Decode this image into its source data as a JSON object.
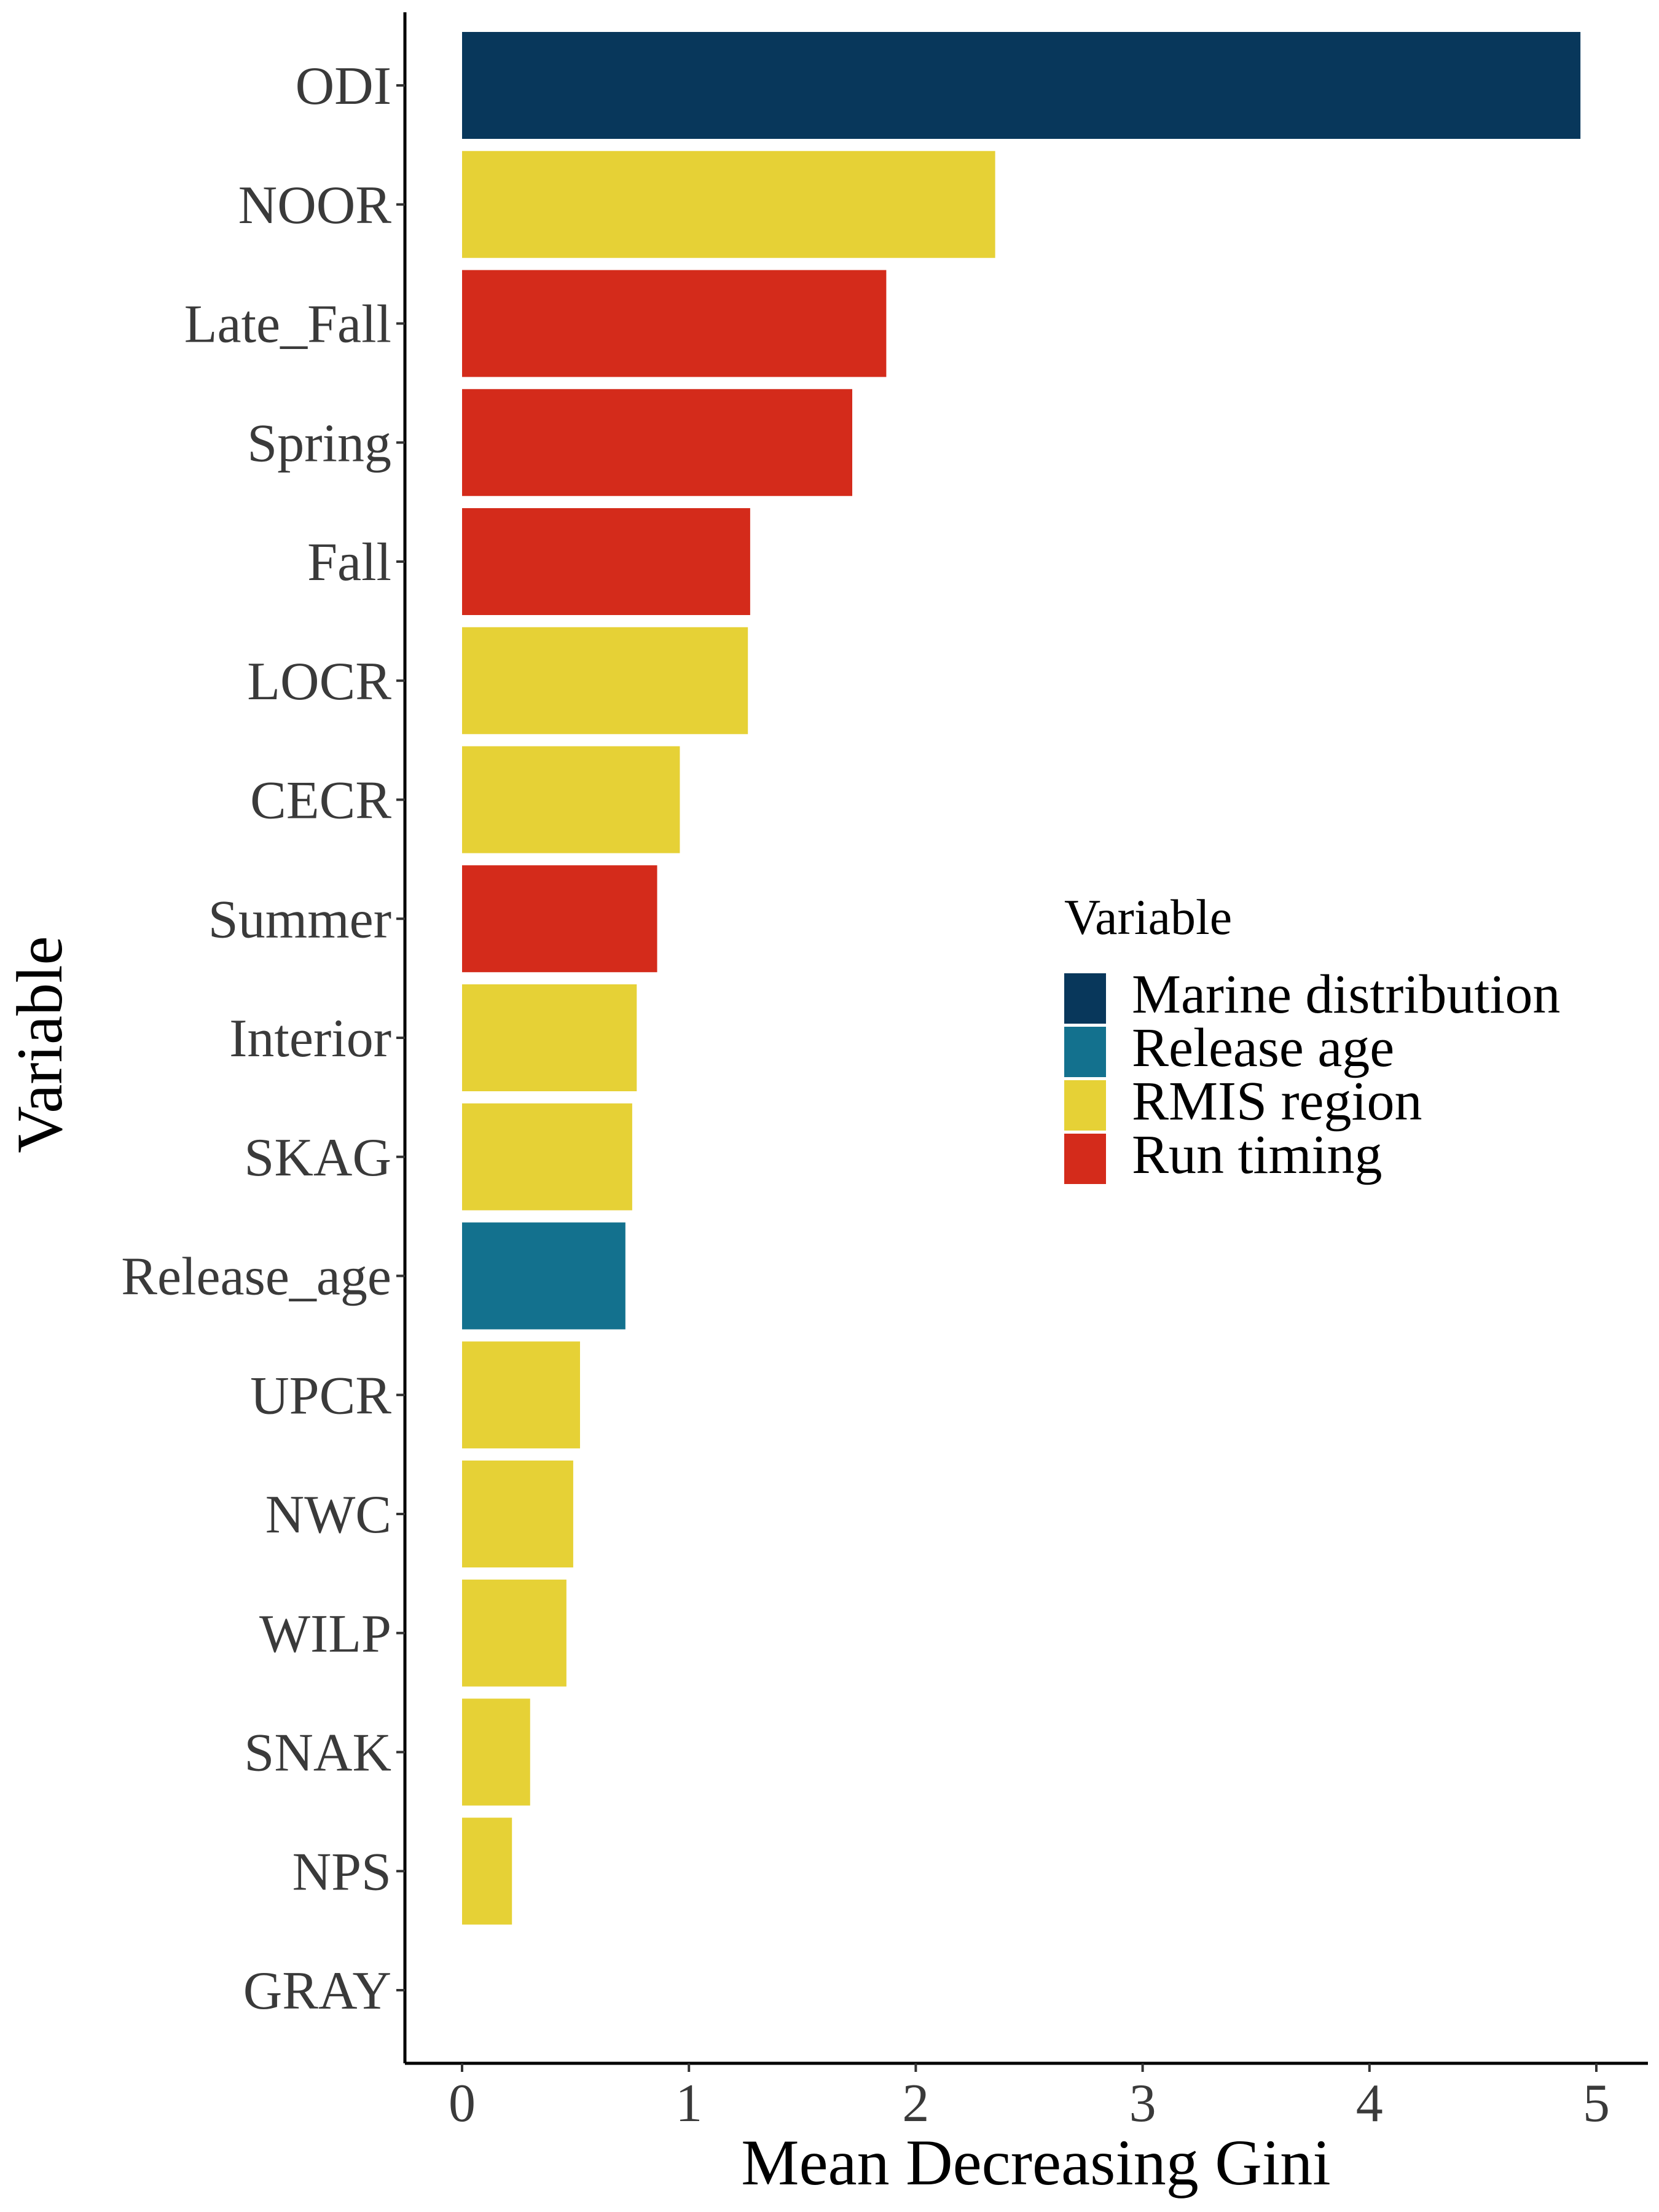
{
  "chart_data": {
    "type": "bar",
    "orientation": "horizontal",
    "title": "",
    "xlabel": "Mean Decreasing Gini",
    "ylabel": "Variable",
    "xlim": [
      -0.25,
      5.2
    ],
    "x_ticks": [
      0,
      1,
      2,
      3,
      4,
      5
    ],
    "grid": false,
    "categories": [
      "ODI",
      "NOOR",
      "Late_Fall",
      "Spring",
      "Fall",
      "LOCR",
      "CECR",
      "Summer",
      "Interior",
      "SKAG",
      "Release_age",
      "UPCR",
      "NWC",
      "WILP",
      "SNAK",
      "NPS",
      "GRAY"
    ],
    "values": [
      4.93,
      2.35,
      1.87,
      1.72,
      1.27,
      1.26,
      0.96,
      0.86,
      0.77,
      0.75,
      0.72,
      0.52,
      0.49,
      0.46,
      0.3,
      0.22,
      0.0
    ],
    "groups": [
      "Marine distribution",
      "RMIS region",
      "Run timing",
      "Run timing",
      "Run timing",
      "RMIS region",
      "RMIS region",
      "Run timing",
      "RMIS region",
      "RMIS region",
      "Release age",
      "RMIS region",
      "RMIS region",
      "RMIS region",
      "RMIS region",
      "RMIS region",
      "RMIS region"
    ],
    "legend": {
      "title": "Variable",
      "position": "right",
      "entries": [
        {
          "name": "Marine distribution",
          "color": "#08375b"
        },
        {
          "name": "Release age",
          "color": "#13718e"
        },
        {
          "name": "RMIS region",
          "color": "#e6d136"
        },
        {
          "name": "Run timing",
          "color": "#d42b1b"
        }
      ]
    }
  }
}
